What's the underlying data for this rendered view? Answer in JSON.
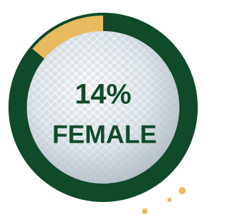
{
  "chart_data": {
    "type": "donut",
    "categories": [
      "FEMALE"
    ],
    "values": [
      14
    ],
    "value_labels": [
      "14%"
    ],
    "color": "#e8b95f"
  }
}
